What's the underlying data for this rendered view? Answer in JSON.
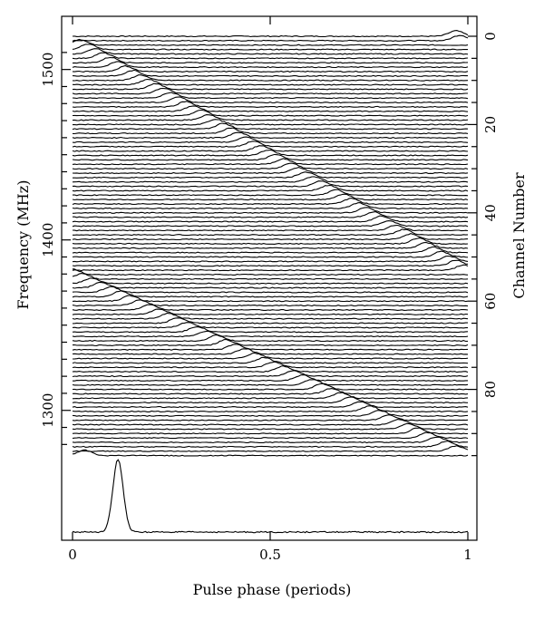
{
  "chart_data": {
    "type": "line",
    "title": "",
    "xlabel": "Pulse phase (periods)",
    "ylabel_left": "Frequency (MHz)",
    "ylabel_right": "Channel Number",
    "x_ticks": [
      0,
      0.5,
      1
    ],
    "x_tick_labels": [
      "0",
      "0.5",
      "1"
    ],
    "xlim": [
      -0.02,
      1.02
    ],
    "freq_ticks": [
      1500,
      1400,
      1300
    ],
    "freq_tick_labels": [
      "1500",
      "1400",
      "1300"
    ],
    "channel_ticks": [
      0,
      20,
      40,
      60,
      80
    ],
    "channel_tick_labels": [
      "0",
      "20",
      "40",
      "60",
      "80"
    ],
    "n_channels": 96,
    "freq_at_channel_0": 1519.5,
    "freq_channel_width_mhz": -2.59,
    "dispersion": {
      "description_values": "pulse phase of peak per channel",
      "segment_1": {
        "channel_start": 2,
        "channel_end": 53,
        "phase_start": 0.02,
        "phase_end": 0.99
      },
      "segment_2": {
        "channel_start": 54,
        "channel_end": 94,
        "phase_start": 0.0,
        "phase_end": 0.97
      },
      "wrap_tail_channel_0_phase": 0.97,
      "wrap_tail_channel_95_phase": 0.03
    },
    "integrated_profile": {
      "peak_phase": 0.115,
      "peak_width": 0.013,
      "relative_amplitude": 1.0
    },
    "grid": false,
    "legend": "none"
  }
}
